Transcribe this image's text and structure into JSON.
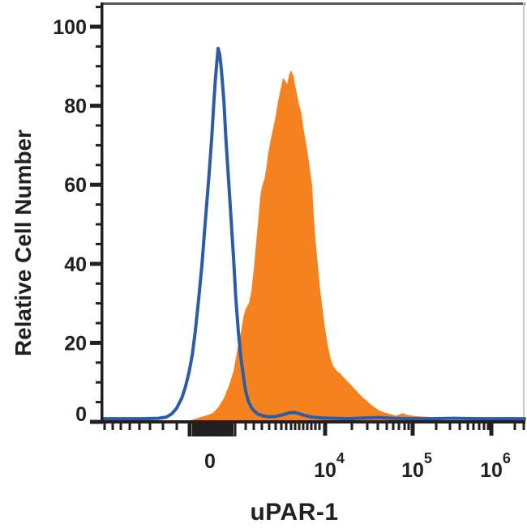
{
  "figure": {
    "background_color": "#ffffff",
    "frame": {
      "spine_color": "#231f20",
      "top_spine_color": "#58585a",
      "right_spine_color": "#c9c9c9"
    }
  },
  "chart_data": {
    "type": "area",
    "subtype": "flow-cytometry-overlay-histogram",
    "title": "",
    "xlabel": "uPAR-1",
    "ylabel": "Relative Cell Number",
    "x_scale": "biexponential",
    "x_unit": "axis-fraction 0-1 across plot width",
    "ylim": [
      0,
      100
    ],
    "grid": false,
    "legend": "none",
    "y_axis": {
      "major_tick_values": [
        0,
        20,
        40,
        60,
        80,
        100
      ],
      "minor_tick_step": 5,
      "minor_tick_max": 105
    },
    "x_axis": {
      "major_ticks": [
        {
          "f": 0.2538,
          "base": "0",
          "exp": ""
        },
        {
          "f": 0.5269,
          "base": "10",
          "exp": "4"
        },
        {
          "f": 0.7346,
          "base": "10",
          "exp": "5"
        },
        {
          "f": 0.9212,
          "base": "10",
          "exp": "6"
        }
      ],
      "minor_ticks_f": [
        0.0038,
        0.0231,
        0.0423,
        0.0635,
        0.0865,
        0.1115,
        0.1423,
        0.175,
        0.3385,
        0.3577,
        0.3769,
        0.3942,
        0.4096,
        0.4231,
        0.4346,
        0.4462,
        0.4558,
        0.4654,
        0.475,
        0.4846,
        0.4942,
        0.5038,
        0.5135,
        0.5904,
        0.6269,
        0.6519,
        0.6731,
        0.6885,
        0.7019,
        0.7154,
        0.725,
        0.7904,
        0.8231,
        0.8462,
        0.8654,
        0.8788,
        0.8923,
        0.9038,
        0.9135,
        0.9769,
        0.9981
      ],
      "cluster_ticks": [
        [
          0.2058,
          5
        ],
        [
          0.2173,
          6
        ],
        [
          0.2288,
          8
        ],
        [
          0.2404,
          10
        ],
        [
          0.2519,
          12
        ],
        [
          0.2635,
          10
        ],
        [
          0.275,
          9
        ],
        [
          0.2865,
          7
        ],
        [
          0.2962,
          6
        ],
        [
          0.3058,
          4
        ],
        [
          0.3135,
          3
        ]
      ]
    },
    "series": [
      {
        "name": "orange-filled-histogram",
        "style": "filled",
        "color": "#f5821e",
        "points": [
          [
            0.198,
            0.2
          ],
          [
            0.213,
            0.6
          ],
          [
            0.229,
            1.1
          ],
          [
            0.244,
            1.6
          ],
          [
            0.26,
            2.2
          ],
          [
            0.273,
            3.6
          ],
          [
            0.287,
            6
          ],
          [
            0.3,
            9.5
          ],
          [
            0.31,
            13
          ],
          [
            0.319,
            18.5
          ],
          [
            0.327,
            22.5
          ],
          [
            0.333,
            26.5
          ],
          [
            0.338,
            28.5
          ],
          [
            0.346,
            30
          ],
          [
            0.352,
            33
          ],
          [
            0.358,
            39
          ],
          [
            0.363,
            45
          ],
          [
            0.369,
            52
          ],
          [
            0.373,
            57
          ],
          [
            0.377,
            59.5
          ],
          [
            0.383,
            61.5
          ],
          [
            0.387,
            64
          ],
          [
            0.392,
            68
          ],
          [
            0.398,
            71.5
          ],
          [
            0.404,
            74.5
          ],
          [
            0.41,
            77.5
          ],
          [
            0.415,
            81
          ],
          [
            0.421,
            84
          ],
          [
            0.427,
            87
          ],
          [
            0.431,
            86.5
          ],
          [
            0.437,
            85.5
          ],
          [
            0.442,
            88
          ],
          [
            0.446,
            89
          ],
          [
            0.452,
            87.5
          ],
          [
            0.456,
            85
          ],
          [
            0.462,
            82
          ],
          [
            0.467,
            79.5
          ],
          [
            0.471,
            78
          ],
          [
            0.475,
            74.5
          ],
          [
            0.481,
            71
          ],
          [
            0.485,
            68.5
          ],
          [
            0.49,
            64.5
          ],
          [
            0.496,
            60
          ],
          [
            0.5,
            52
          ],
          [
            0.504,
            46
          ],
          [
            0.51,
            39.5
          ],
          [
            0.515,
            33.5
          ],
          [
            0.521,
            28.5
          ],
          [
            0.527,
            23.5
          ],
          [
            0.533,
            19.5
          ],
          [
            0.54,
            16
          ],
          [
            0.546,
            14.2
          ],
          [
            0.554,
            13
          ],
          [
            0.563,
            12.2
          ],
          [
            0.575,
            10.8
          ],
          [
            0.587,
            9.5
          ],
          [
            0.6,
            8
          ],
          [
            0.613,
            6.5
          ],
          [
            0.627,
            5.2
          ],
          [
            0.64,
            4
          ],
          [
            0.654,
            3
          ],
          [
            0.667,
            2.4
          ],
          [
            0.681,
            2
          ],
          [
            0.696,
            1.6
          ],
          [
            0.71,
            2.2
          ],
          [
            0.725,
            1.7
          ],
          [
            0.738,
            1.5
          ],
          [
            0.752,
            1.4
          ],
          [
            0.767,
            1.3
          ],
          [
            0.783,
            1.1
          ],
          [
            0.796,
            0.7
          ],
          [
            0.81,
            0.3
          ],
          [
            0.819,
            0.1
          ]
        ]
      },
      {
        "name": "blue-open-histogram",
        "style": "open-line",
        "color": "#2b5ca5",
        "line_width": 4,
        "points": [
          [
            0.0,
            0.8
          ],
          [
            0.044,
            0.8
          ],
          [
            0.092,
            0.8
          ],
          [
            0.131,
            0.9
          ],
          [
            0.15,
            1.2
          ],
          [
            0.163,
            2
          ],
          [
            0.175,
            3.5
          ],
          [
            0.187,
            6
          ],
          [
            0.196,
            9
          ],
          [
            0.204,
            12.5
          ],
          [
            0.212,
            17
          ],
          [
            0.219,
            23
          ],
          [
            0.227,
            31
          ],
          [
            0.235,
            40
          ],
          [
            0.24,
            47
          ],
          [
            0.246,
            55
          ],
          [
            0.252,
            63
          ],
          [
            0.258,
            72
          ],
          [
            0.263,
            81
          ],
          [
            0.267,
            87
          ],
          [
            0.271,
            92
          ],
          [
            0.273,
            94.5
          ],
          [
            0.277,
            93
          ],
          [
            0.281,
            89
          ],
          [
            0.287,
            81
          ],
          [
            0.292,
            71
          ],
          [
            0.298,
            61
          ],
          [
            0.304,
            51
          ],
          [
            0.31,
            41
          ],
          [
            0.315,
            31.5
          ],
          [
            0.321,
            23
          ],
          [
            0.327,
            16.5
          ],
          [
            0.333,
            11.5
          ],
          [
            0.338,
            8
          ],
          [
            0.344,
            5.5
          ],
          [
            0.352,
            3.6
          ],
          [
            0.36,
            2.6
          ],
          [
            0.369,
            1.9
          ],
          [
            0.381,
            1.5
          ],
          [
            0.394,
            1.3
          ],
          [
            0.41,
            1.4
          ],
          [
            0.427,
            1.8
          ],
          [
            0.442,
            2.3
          ],
          [
            0.454,
            2.4
          ],
          [
            0.465,
            2.1
          ],
          [
            0.479,
            1.6
          ],
          [
            0.496,
            1.2
          ],
          [
            0.519,
            1.0
          ],
          [
            0.548,
            0.9
          ],
          [
            0.583,
            0.8
          ],
          [
            0.621,
            1.0
          ],
          [
            0.656,
            1.1
          ],
          [
            0.688,
            0.9
          ],
          [
            0.727,
            0.8
          ],
          [
            0.775,
            0.8
          ],
          [
            0.833,
            0.9
          ],
          [
            0.89,
            0.8
          ],
          [
            0.948,
            0.8
          ],
          [
            1.0,
            0.8
          ]
        ]
      }
    ]
  }
}
